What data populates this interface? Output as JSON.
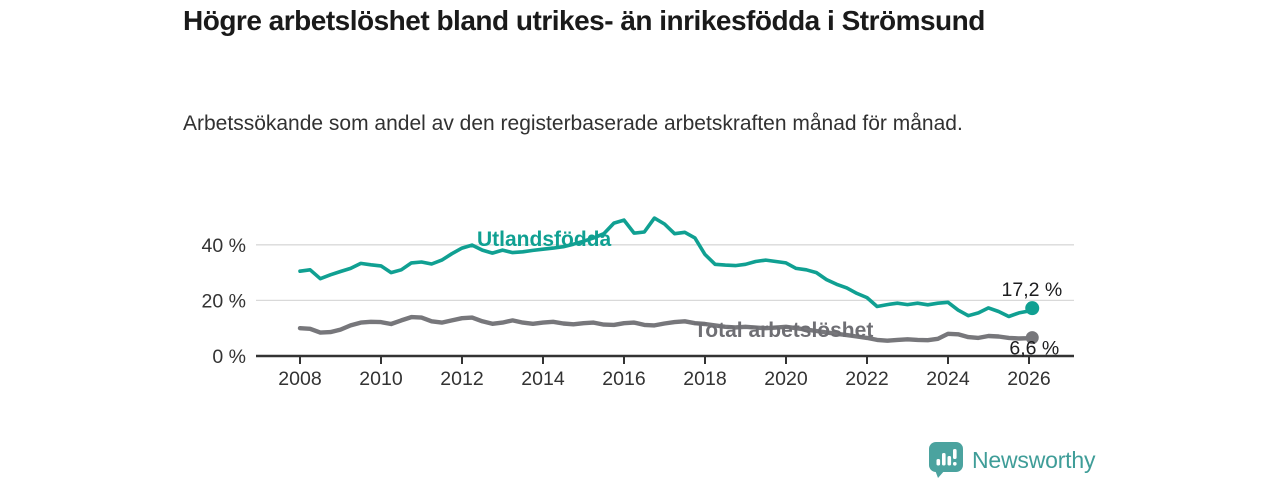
{
  "header": {
    "title": "Högre arbetslöshet bland utrikes- än inrikesfödda i Strömsund",
    "subtitle": "Arbetssökande som andel av den registerbaserade arbetskraften månad för månad."
  },
  "chart_data": {
    "type": "line",
    "title": "Högre arbetslöshet bland utrikes- än inrikesfödda i Strömsund",
    "subtitle": "Arbetssökande som andel av den registerbaserade arbetskraften månad för månad.",
    "xlabel": "",
    "ylabel": "",
    "unit": "%",
    "xlim": [
      2006.9,
      2027.1
    ],
    "ylim": [
      0,
      52
    ],
    "grid": "horizontal",
    "x_ticks": [
      2008,
      2010,
      2012,
      2014,
      2016,
      2018,
      2020,
      2022,
      2024,
      2026
    ],
    "y_ticks": [
      {
        "value": 0,
        "label": "0 %"
      },
      {
        "value": 20,
        "label": "20 %"
      },
      {
        "value": 40,
        "label": "40 %"
      }
    ],
    "colors": {
      "axis": "#333333",
      "grid": "#d9d9d9",
      "tick_text": "#333333",
      "end_label_text": "#1d1d1f"
    },
    "series": [
      {
        "name": "Utlandsfödda",
        "color": "#10a092",
        "label_color": "#10a092",
        "end_label": "17,2 %",
        "x": [
          2008.0,
          2008.25,
          2008.5,
          2008.75,
          2009.0,
          2009.25,
          2009.5,
          2009.75,
          2010.0,
          2010.25,
          2010.5,
          2010.75,
          2011.0,
          2011.25,
          2011.5,
          2011.75,
          2012.0,
          2012.25,
          2012.5,
          2012.75,
          2013.0,
          2013.25,
          2013.5,
          2013.75,
          2014.0,
          2014.25,
          2014.5,
          2014.75,
          2015.0,
          2015.25,
          2015.5,
          2015.75,
          2016.0,
          2016.25,
          2016.5,
          2016.75,
          2017.0,
          2017.25,
          2017.5,
          2017.75,
          2018.0,
          2018.25,
          2018.5,
          2018.75,
          2019.0,
          2019.25,
          2019.5,
          2019.75,
          2020.0,
          2020.25,
          2020.5,
          2020.75,
          2021.0,
          2021.25,
          2021.5,
          2021.75,
          2022.0,
          2022.25,
          2022.5,
          2022.75,
          2023.0,
          2023.25,
          2023.5,
          2023.75,
          2024.0,
          2024.25,
          2024.5,
          2024.75,
          2025.0,
          2025.25,
          2025.5,
          2025.75,
          2026.0,
          2026.08
        ],
        "y": [
          30.5,
          31.0,
          27.8,
          29.2,
          30.4,
          31.5,
          33.3,
          32.8,
          32.4,
          30.0,
          31.0,
          33.5,
          33.8,
          33.1,
          34.5,
          36.8,
          38.8,
          39.9,
          38.1,
          37.0,
          38.1,
          37.2,
          37.5,
          38.0,
          38.4,
          38.8,
          39.3,
          40.2,
          41.3,
          42.5,
          44.0,
          47.8,
          48.9,
          44.2,
          44.6,
          49.6,
          47.5,
          44.0,
          44.5,
          42.5,
          36.5,
          33.0,
          32.7,
          32.5,
          33.0,
          34.0,
          34.5,
          34.0,
          33.5,
          31.5,
          31.0,
          30.0,
          27.5,
          25.8,
          24.5,
          22.5,
          21.0,
          17.8,
          18.5,
          19.0,
          18.5,
          19.0,
          18.4,
          19.0,
          19.3,
          16.5,
          14.5,
          15.5,
          17.3,
          16.0,
          14.2,
          15.5,
          16.2,
          17.2
        ]
      },
      {
        "name": "Total arbetslöshet",
        "color": "#77777b",
        "label_color": "#6f6f74",
        "end_label": "6,6 %",
        "x": [
          2008.0,
          2008.25,
          2008.5,
          2008.75,
          2009.0,
          2009.25,
          2009.5,
          2009.75,
          2010.0,
          2010.25,
          2010.5,
          2010.75,
          2011.0,
          2011.25,
          2011.5,
          2011.75,
          2012.0,
          2012.25,
          2012.5,
          2012.75,
          2013.0,
          2013.25,
          2013.5,
          2013.75,
          2014.0,
          2014.25,
          2014.5,
          2014.75,
          2015.0,
          2015.25,
          2015.5,
          2015.75,
          2016.0,
          2016.25,
          2016.5,
          2016.75,
          2017.0,
          2017.25,
          2017.5,
          2017.75,
          2018.0,
          2018.25,
          2018.5,
          2018.75,
          2019.0,
          2019.25,
          2019.5,
          2019.75,
          2020.0,
          2020.25,
          2020.5,
          2020.75,
          2021.0,
          2021.25,
          2021.5,
          2021.75,
          2022.0,
          2022.25,
          2022.5,
          2022.75,
          2023.0,
          2023.25,
          2023.5,
          2023.75,
          2024.0,
          2024.25,
          2024.5,
          2024.75,
          2025.0,
          2025.25,
          2025.5,
          2025.75,
          2026.0,
          2026.08
        ],
        "y": [
          10.0,
          9.8,
          8.4,
          8.6,
          9.5,
          11.0,
          12.0,
          12.3,
          12.2,
          11.5,
          12.8,
          14.0,
          13.8,
          12.5,
          12.0,
          12.8,
          13.6,
          13.8,
          12.5,
          11.6,
          12.0,
          12.8,
          12.0,
          11.6,
          12.0,
          12.3,
          11.7,
          11.4,
          11.8,
          12.0,
          11.3,
          11.2,
          11.8,
          12.0,
          11.2,
          11.0,
          11.7,
          12.2,
          12.5,
          11.8,
          11.5,
          11.0,
          10.5,
          10.3,
          10.5,
          10.2,
          10.0,
          10.2,
          10.5,
          10.0,
          9.5,
          9.0,
          8.5,
          8.0,
          7.5,
          7.0,
          6.5,
          5.8,
          5.5,
          5.8,
          6.0,
          5.8,
          5.7,
          6.2,
          8.0,
          7.8,
          6.8,
          6.5,
          7.2,
          7.0,
          6.5,
          6.3,
          6.4,
          6.6
        ]
      }
    ],
    "legend_position": "inline-labels"
  },
  "branding": {
    "logo_text": "Newsworthy",
    "logo_icon": "bar-chart-speech-bubble-icon",
    "logo_icon_color": "#4ba39f",
    "logo_text_color": "#3f9d98"
  }
}
